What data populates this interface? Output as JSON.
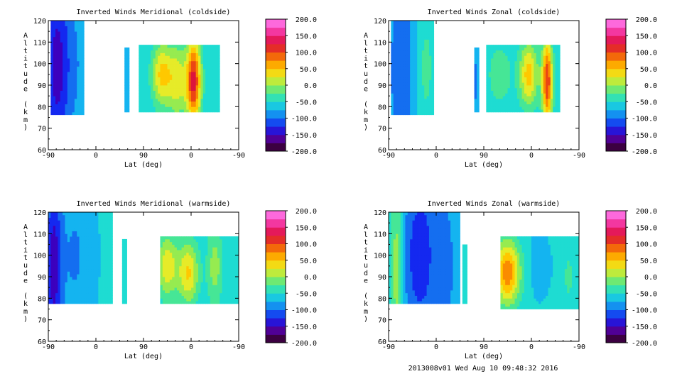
{
  "chart_data": [
    {
      "type": "heatmap",
      "title": "Inverted Winds Meridional (coldside)",
      "xlabel": "Lat (deg)",
      "ylabel": "Altitude (km)",
      "xticks": [
        "-90",
        "0",
        "90",
        "0",
        "-90"
      ],
      "yticks": [
        "60",
        "70",
        "80",
        "90",
        "100",
        "110",
        "120"
      ],
      "ylim": [
        60,
        120
      ],
      "colorbar": {
        "labels": [
          "200.0",
          "150.0",
          "100.0",
          "50.0",
          "0.0",
          "-50.0",
          "-100.0",
          "-150.0",
          "-200.0"
        ],
        "range": [
          -200,
          200
        ]
      },
      "blobs": [
        {
          "x": -75,
          "y": 98,
          "w": 22,
          "h": 45,
          "v": -130
        },
        {
          "x": -50,
          "y": 100,
          "w": 40,
          "h": 40,
          "v": -90
        },
        {
          "x": -30,
          "y": 100,
          "w": 20,
          "h": 30,
          "v": -60
        },
        {
          "x": 60,
          "y": 95,
          "w": 6,
          "h": 20,
          "v": -80
        },
        {
          "x": 125,
          "y": 95,
          "w": 20,
          "h": 15,
          "v": 45
        },
        {
          "x": 185,
          "y": 92,
          "w": 14,
          "h": 20,
          "v": 120
        },
        {
          "x": 155,
          "y": 92,
          "w": 18,
          "h": 18,
          "v": 20
        }
      ],
      "coverage": [
        {
          "x0": -85,
          "x1": -23,
          "y0": 76,
          "y1": 120
        },
        {
          "x0": 55,
          "x1": 65,
          "y0": 78,
          "y1": 108
        },
        {
          "x0": 80,
          "x1": 235,
          "y0": 78,
          "y1": 109
        }
      ]
    },
    {
      "type": "heatmap",
      "title": "Inverted Winds Zonal (coldside)",
      "xlabel": "Lat (deg)",
      "ylabel": "Altitude (km)",
      "xticks": [
        "-90",
        "0",
        "90",
        "0",
        "-90"
      ],
      "yticks": [
        "60",
        "70",
        "80",
        "90",
        "100",
        "110",
        "120"
      ],
      "ylim": [
        60,
        120
      ],
      "colorbar": {
        "labels": [
          "200.0",
          "150.0",
          "100.0",
          "50.0",
          "0.0",
          "-50.0",
          "-100.0",
          "-150.0",
          "-200.0"
        ],
        "range": [
          -200,
          200
        ]
      },
      "blobs": [
        {
          "x": -65,
          "y": 98,
          "w": 25,
          "h": 45,
          "v": -110
        },
        {
          "x": -20,
          "y": 98,
          "w": 18,
          "h": 30,
          "v": -30
        },
        {
          "x": 75,
          "y": 92,
          "w": 5,
          "h": 15,
          "v": -100
        },
        {
          "x": 120,
          "y": 95,
          "w": 25,
          "h": 15,
          "v": -20
        },
        {
          "x": 175,
          "y": 95,
          "w": 18,
          "h": 15,
          "v": 50
        },
        {
          "x": 210,
          "y": 92,
          "w": 10,
          "h": 20,
          "v": 110
        }
      ],
      "coverage": [
        {
          "x0": -85,
          "x1": -5,
          "y0": 76,
          "y1": 120
        },
        {
          "x0": 70,
          "x1": 80,
          "y0": 78,
          "y1": 108
        },
        {
          "x0": 95,
          "x1": 235,
          "y0": 77,
          "y1": 109
        }
      ]
    },
    {
      "type": "heatmap",
      "title": "Inverted Winds Meridional (warmside)",
      "xlabel": "Lat (deg)",
      "ylabel": "Altitude (km)",
      "xticks": [
        "-90",
        "0",
        "90",
        "0",
        "-90"
      ],
      "yticks": [
        "60",
        "70",
        "80",
        "90",
        "100",
        "110",
        "120"
      ],
      "ylim": [
        60,
        120
      ],
      "colorbar": {
        "labels": [
          "200.0",
          "150.0",
          "100.0",
          "50.0",
          "0.0",
          "-50.0",
          "-100.0",
          "-150.0",
          "-200.0"
        ],
        "range": [
          -200,
          200
        ]
      },
      "blobs": [
        {
          "x": -80,
          "y": 95,
          "w": 15,
          "h": 40,
          "v": -150
        },
        {
          "x": -40,
          "y": 100,
          "w": 30,
          "h": 40,
          "v": -90
        },
        {
          "x": 10,
          "y": 95,
          "w": 20,
          "h": 30,
          "v": -60
        },
        {
          "x": 135,
          "y": 95,
          "w": 20,
          "h": 15,
          "v": 30
        },
        {
          "x": 175,
          "y": 92,
          "w": 20,
          "h": 15,
          "v": 40
        },
        {
          "x": 225,
          "y": 95,
          "w": 15,
          "h": 20,
          "v": 0
        }
      ],
      "coverage": [
        {
          "x0": -90,
          "x1": 30,
          "y0": 78,
          "y1": 120
        },
        {
          "x0": 50,
          "x1": 58,
          "y0": 78,
          "y1": 107
        },
        {
          "x0": 120,
          "x1": 270,
          "y0": 77,
          "y1": 109
        }
      ]
    },
    {
      "type": "heatmap",
      "title": "Inverted Winds Zonal (warmside)",
      "xlabel": "Lat (deg)",
      "ylabel": "Altitude (km)",
      "xticks": [
        "-90",
        "0",
        "90",
        "0",
        "-90"
      ],
      "yticks": [
        "60",
        "70",
        "80",
        "90",
        "100",
        "110",
        "120"
      ],
      "ylim": [
        60,
        120
      ],
      "colorbar": {
        "labels": [
          "200.0",
          "150.0",
          "100.0",
          "50.0",
          "0.0",
          "-50.0",
          "-100.0",
          "-150.0",
          "-200.0"
        ],
        "range": [
          -200,
          200
        ]
      },
      "blobs": [
        {
          "x": -75,
          "y": 95,
          "w": 12,
          "h": 40,
          "v": 10
        },
        {
          "x": -30,
          "y": 100,
          "w": 35,
          "h": 40,
          "v": -130
        },
        {
          "x": 20,
          "y": 95,
          "w": 15,
          "h": 30,
          "v": -100
        },
        {
          "x": 135,
          "y": 92,
          "w": 25,
          "h": 15,
          "v": 80
        },
        {
          "x": 190,
          "y": 95,
          "w": 25,
          "h": 15,
          "v": -70
        },
        {
          "x": 250,
          "y": 90,
          "w": 10,
          "h": 15,
          "v": -30
        }
      ],
      "coverage": [
        {
          "x0": -90,
          "x1": 45,
          "y0": 78,
          "y1": 120
        },
        {
          "x0": 50,
          "x1": 58,
          "y0": 78,
          "y1": 105
        },
        {
          "x0": 120,
          "x1": 270,
          "y0": 75,
          "y1": 109
        }
      ]
    }
  ],
  "footer": "2013008v01 Wed Aug 10 09:48:32 2016"
}
